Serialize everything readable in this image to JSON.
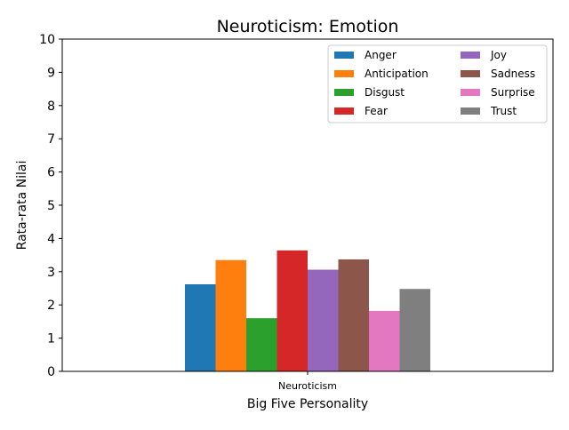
{
  "chart_data": {
    "type": "bar",
    "title": "Neuroticism: Emotion",
    "xlabel": "Big Five Personality",
    "ylabel": "Rata-rata Nilai",
    "categories": [
      "Neuroticism"
    ],
    "ylim": [
      0,
      10
    ],
    "yticks": [
      0,
      1,
      2,
      3,
      4,
      5,
      6,
      7,
      8,
      9,
      10
    ],
    "grid": false,
    "legend_position": "top-right",
    "legend_columns": 2,
    "series": [
      {
        "name": "Anger",
        "values": [
          2.62
        ],
        "color": "#1f77b4"
      },
      {
        "name": "Anticipation",
        "values": [
          3.35
        ],
        "color": "#ff7f0e"
      },
      {
        "name": "Disgust",
        "values": [
          1.6
        ],
        "color": "#2ca02c"
      },
      {
        "name": "Fear",
        "values": [
          3.64
        ],
        "color": "#d62728"
      },
      {
        "name": "Joy",
        "values": [
          3.06
        ],
        "color": "#9467bd"
      },
      {
        "name": "Sadness",
        "values": [
          3.37
        ],
        "color": "#8c564b"
      },
      {
        "name": "Surprise",
        "values": [
          1.82
        ],
        "color": "#e377c2"
      },
      {
        "name": "Trust",
        "values": [
          2.48
        ],
        "color": "#7f7f7f"
      }
    ]
  }
}
